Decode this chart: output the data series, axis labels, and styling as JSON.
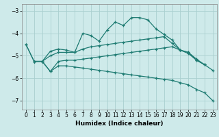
{
  "xlabel": "Humidex (Indice chaleur)",
  "xlim": [
    -0.5,
    23.5
  ],
  "ylim": [
    -7.4,
    -2.7
  ],
  "yticks": [
    -7,
    -6,
    -5,
    -4,
    -3
  ],
  "xticks": [
    0,
    1,
    2,
    3,
    4,
    5,
    6,
    7,
    8,
    9,
    10,
    11,
    12,
    13,
    14,
    15,
    16,
    17,
    18,
    19,
    20,
    21,
    22,
    23
  ],
  "bg_color": "#ceeaea",
  "line_color": "#1e7b72",
  "grid_color_major": "#aacfcf",
  "grid_color_minor": "#c4e4e4",
  "lines": [
    {
      "x": [
        0,
        1,
        2,
        3,
        4,
        5,
        6,
        7,
        8,
        9,
        10,
        11,
        12,
        13,
        14,
        15,
        16,
        17,
        18,
        19,
        20,
        21,
        22
      ],
      "y": [
        -4.5,
        -5.25,
        -5.25,
        -4.8,
        -4.7,
        -4.75,
        -4.85,
        -4.0,
        -4.1,
        -4.35,
        -3.85,
        -3.5,
        -3.65,
        -3.3,
        -3.3,
        -3.4,
        -3.8,
        -4.05,
        -4.3,
        -4.75,
        -4.85,
        -5.2,
        -5.4
      ]
    },
    {
      "x": [
        0,
        1,
        2,
        3,
        4,
        5,
        6,
        7,
        8,
        9,
        10,
        11,
        12,
        13,
        14,
        15,
        16,
        17,
        18,
        19,
        20,
        21,
        22
      ],
      "y": [
        -4.5,
        -5.25,
        -5.25,
        -5.0,
        -4.85,
        -4.85,
        -4.85,
        -4.7,
        -4.6,
        -4.55,
        -4.5,
        -4.45,
        -4.4,
        -4.35,
        -4.3,
        -4.25,
        -4.2,
        -4.15,
        -4.45,
        -4.75,
        -4.85,
        -5.15,
        -5.4
      ]
    },
    {
      "x": [
        1,
        2,
        3,
        4,
        5,
        6,
        7,
        8,
        9,
        10,
        11,
        12,
        13,
        14,
        15,
        16,
        17,
        18,
        19,
        20,
        21,
        22,
        23
      ],
      "y": [
        -5.25,
        -5.25,
        -5.7,
        -5.25,
        -5.2,
        -5.2,
        -5.15,
        -5.1,
        -5.05,
        -5.0,
        -4.95,
        -4.9,
        -4.85,
        -4.8,
        -4.75,
        -4.7,
        -4.65,
        -4.6,
        -4.75,
        -4.9,
        -5.2,
        -5.4,
        -5.65
      ]
    },
    {
      "x": [
        1,
        2,
        3,
        4,
        5,
        6,
        7,
        8,
        9,
        10,
        11,
        12,
        13,
        14,
        15,
        16,
        17,
        18,
        19,
        20,
        21,
        22,
        23
      ],
      "y": [
        -5.25,
        -5.25,
        -5.7,
        -5.45,
        -5.45,
        -5.5,
        -5.55,
        -5.6,
        -5.65,
        -5.7,
        -5.75,
        -5.8,
        -5.85,
        -5.9,
        -5.95,
        -6.0,
        -6.05,
        -6.1,
        -6.2,
        -6.3,
        -6.5,
        -6.65,
        -7.0
      ]
    }
  ]
}
